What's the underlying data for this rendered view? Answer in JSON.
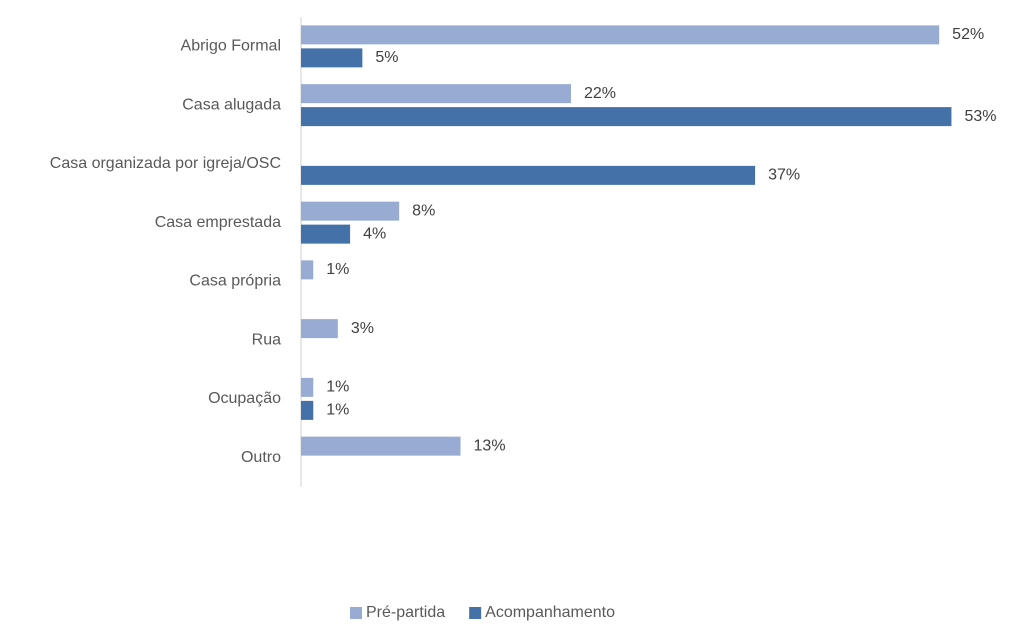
{
  "chart_data": {
    "type": "bar",
    "orientation": "horizontal",
    "categories": [
      "Abrigo Formal",
      "Casa alugada",
      "Casa organizada por igreja/OSC",
      "Casa emprestada",
      "Casa própria",
      "Rua",
      "Ocupação",
      "Outro"
    ],
    "series": [
      {
        "name": "Pré-partida",
        "color": "#97abd3",
        "values": [
          52,
          22,
          null,
          8,
          1,
          3,
          1,
          13
        ],
        "value_labels": [
          "52%",
          "22%",
          null,
          "8%",
          "1%",
          "3%",
          "1%",
          "13%"
        ]
      },
      {
        "name": "Acompanhamento",
        "color": "#4472a8",
        "values": [
          5,
          53,
          37,
          4,
          null,
          null,
          1,
          null
        ],
        "value_labels": [
          "5%",
          "53%",
          "37%",
          "4%",
          null,
          null,
          "1%",
          null
        ]
      }
    ],
    "xlim": [
      0,
      55
    ],
    "legend": "bottom"
  }
}
